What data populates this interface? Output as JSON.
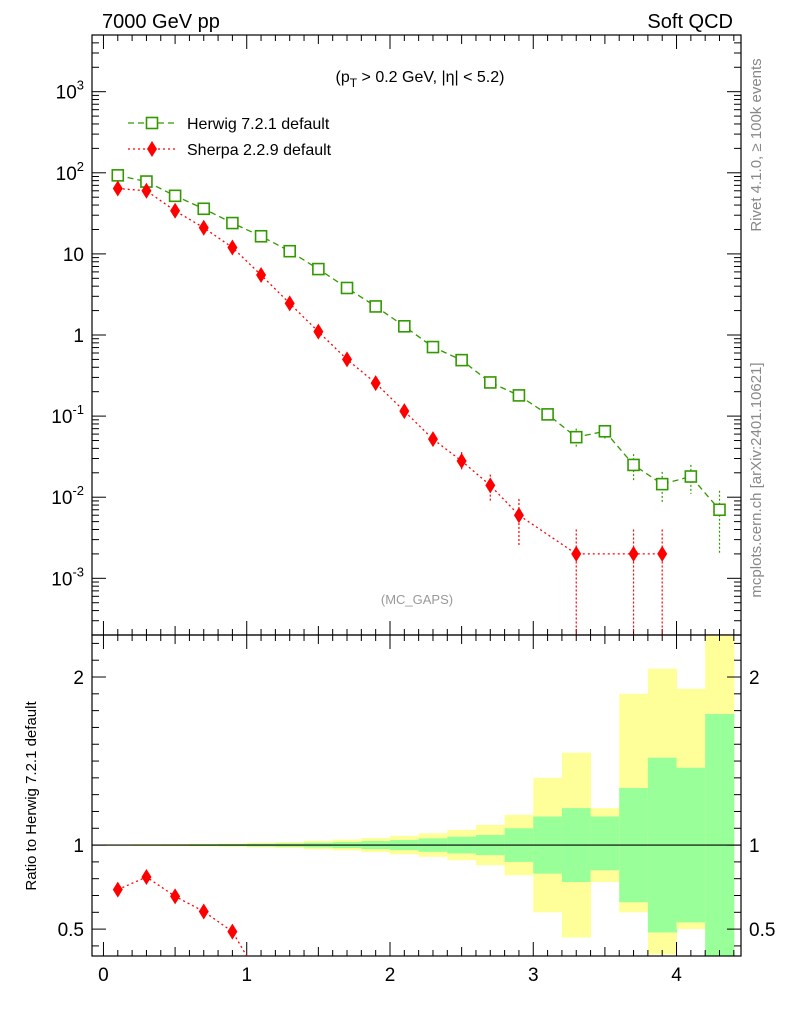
{
  "header": {
    "left": "7000 GeV pp",
    "right": "Soft QCD"
  },
  "side_labels": {
    "rivet": "Rivet 4.1.0, ≥ 100k events",
    "mcplots": "mcplots.cern.ch [arXiv:2401.10621]"
  },
  "chart_data": [
    {
      "type": "line",
      "panel": "main",
      "title": "(p_T > 0.2 GeV, |η| < 5.2)",
      "watermark": "(MC_GAPS)",
      "yscale": "log",
      "xlim": [
        -0.08,
        4.45
      ],
      "ylim": [
        0.0002,
        5000
      ],
      "y_ticks": [
        "10^3",
        "10^2",
        "10",
        "1",
        "10^-1",
        "10^-2",
        "10^-3"
      ],
      "series": [
        {
          "name": "Herwig 7.2.1 default",
          "color": "#339900",
          "marker": "open-square",
          "x": [
            0.1,
            0.3,
            0.5,
            0.7,
            0.9,
            1.1,
            1.3,
            1.5,
            1.7,
            1.9,
            2.1,
            2.3,
            2.5,
            2.7,
            2.9,
            3.1,
            3.3,
            3.5,
            3.7,
            3.9,
            4.1,
            4.3
          ],
          "y": [
            93,
            78,
            52,
            36,
            24,
            16.5,
            10.8,
            6.5,
            3.8,
            2.25,
            1.28,
            0.71,
            0.49,
            0.26,
            0.18,
            0.105,
            0.055,
            0.065,
            0.025,
            0.0145,
            0.018,
            0.007
          ],
          "yerr_lo": [
            0,
            0,
            0,
            0,
            0,
            0,
            0,
            0,
            0,
            0,
            0,
            0,
            0,
            0,
            0,
            0.01,
            0.015,
            0.012,
            0.009,
            0.006,
            0.007,
            0.005
          ],
          "yerr_hi": [
            0,
            0,
            0,
            0,
            0,
            0,
            0,
            0,
            0,
            0,
            0,
            0,
            0,
            0,
            0,
            0.01,
            0.015,
            0.012,
            0.009,
            0.006,
            0.007,
            0.005
          ]
        },
        {
          "name": "Sherpa 2.2.9 default",
          "color": "#ff0000",
          "marker": "diamond",
          "x": [
            0.1,
            0.3,
            0.5,
            0.7,
            0.9,
            1.1,
            1.3,
            1.5,
            1.7,
            1.9,
            2.1,
            2.3,
            2.5,
            2.7,
            2.9,
            3.3,
            3.7,
            3.9
          ],
          "y": [
            64,
            60,
            34,
            21,
            12,
            5.5,
            2.45,
            1.1,
            0.5,
            0.255,
            0.115,
            0.052,
            0.028,
            0.014,
            0.006,
            0.002,
            0.002,
            0.002
          ],
          "yerr_lo": [
            0,
            0,
            0,
            0,
            0,
            0,
            0,
            0,
            0,
            0,
            0,
            0.008,
            0.006,
            0.005,
            0.0035,
            0.00199,
            0.00199,
            0.00199
          ],
          "yerr_hi": [
            0,
            0,
            0,
            0,
            0,
            0,
            0,
            0,
            0,
            0,
            0,
            0.008,
            0.008,
            0.005,
            0.0035,
            0.002,
            0.002,
            0.002
          ]
        }
      ]
    },
    {
      "type": "line",
      "panel": "ratio",
      "ylabel": "Ratio to Herwig 7.2.1 default",
      "xlim": [
        -0.08,
        4.45
      ],
      "ylim": [
        0.34,
        2.25
      ],
      "x_ticks": [
        0,
        1,
        2,
        3,
        4
      ],
      "y_ticks": [
        0.5,
        1,
        2
      ],
      "bands": {
        "edges": [
          0.0,
          0.2,
          0.4,
          0.6,
          0.8,
          1.0,
          1.2,
          1.4,
          1.6,
          1.8,
          2.0,
          2.2,
          2.4,
          2.6,
          2.8,
          3.0,
          3.2,
          3.4,
          3.6,
          3.8,
          4.0,
          4.2,
          4.4
        ],
        "yellow_lo": [
          0.996,
          0.995,
          0.994,
          0.992,
          0.99,
          0.986,
          0.982,
          0.975,
          0.968,
          0.958,
          0.945,
          0.93,
          0.91,
          0.88,
          0.82,
          0.6,
          0.45,
          0.78,
          0.6,
          0.35,
          0.5,
          0.2
        ],
        "yellow_hi": [
          1.004,
          1.005,
          1.006,
          1.008,
          1.01,
          1.014,
          1.018,
          1.025,
          1.033,
          1.042,
          1.055,
          1.07,
          1.09,
          1.12,
          1.18,
          1.4,
          1.55,
          1.22,
          1.9,
          2.05,
          1.93,
          2.4
        ],
        "green_lo": [
          0.998,
          0.997,
          0.996,
          0.995,
          0.994,
          0.992,
          0.99,
          0.986,
          0.982,
          0.976,
          0.97,
          0.96,
          0.95,
          0.94,
          0.9,
          0.83,
          0.78,
          0.85,
          0.66,
          0.48,
          0.54,
          0.22
        ],
        "green_hi": [
          1.002,
          1.003,
          1.004,
          1.005,
          1.006,
          1.008,
          1.01,
          1.014,
          1.018,
          1.024,
          1.03,
          1.04,
          1.05,
          1.06,
          1.1,
          1.17,
          1.22,
          1.17,
          1.34,
          1.52,
          1.46,
          1.78
        ]
      },
      "series": [
        {
          "name": "Sherpa 2.2.9 default / Herwig 7.2.1 default",
          "color": "#ff0000",
          "marker": "diamond",
          "x": [
            0.1,
            0.3,
            0.5,
            0.7,
            0.9,
            1.0
          ],
          "y": [
            0.735,
            0.81,
            0.695,
            0.605,
            0.485,
            0.34
          ]
        }
      ]
    }
  ]
}
